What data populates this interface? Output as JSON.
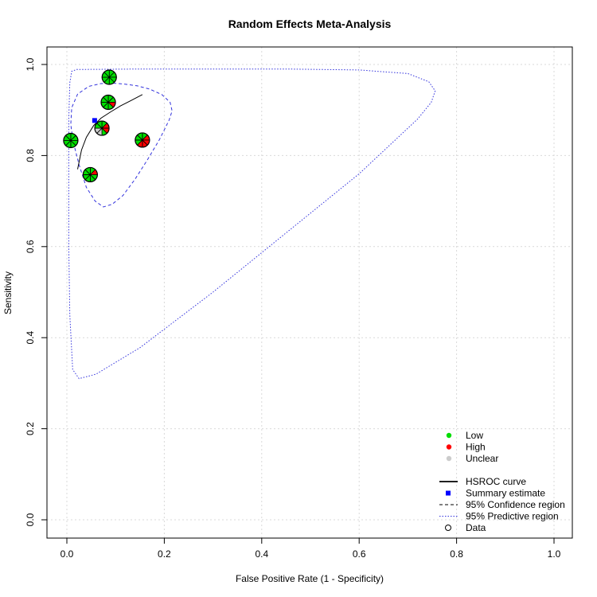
{
  "chart_data": {
    "type": "scatter",
    "title": "Random Effects Meta-Analysis",
    "xlabel": "False Positive Rate (1 - Specificity)",
    "ylabel": "Sensitivity",
    "xlim": [
      0,
      1
    ],
    "ylim": [
      0,
      1
    ],
    "x_ticks": [
      "0.0",
      "0.2",
      "0.4",
      "0.6",
      "0.8",
      "1.0"
    ],
    "y_ticks": [
      "0.0",
      "0.2",
      "0.4",
      "0.6",
      "0.8",
      "1.0"
    ],
    "grid": true,
    "legend_position": "bottom-right",
    "colors": {
      "low": "#00dd00",
      "high": "#ff0000",
      "unclear": "#cccccc",
      "summary": "#0000ff",
      "regions": "#3333dd"
    },
    "legend": {
      "risk": [
        {
          "label": "Low",
          "color": "#00dd00"
        },
        {
          "label": "High",
          "color": "#ff0000"
        },
        {
          "label": "Unclear",
          "color": "#cccccc"
        }
      ],
      "elements": [
        {
          "label": "HSROC curve",
          "symbol": "line"
        },
        {
          "label": "Summary estimate",
          "symbol": "square"
        },
        {
          "label": "95% Confidence region",
          "symbol": "dashed"
        },
        {
          "label": "95% Predictive region",
          "symbol": "dotted"
        },
        {
          "label": "Data",
          "symbol": "circle"
        }
      ]
    },
    "studies": [
      {
        "x": 0.087,
        "y": 0.972,
        "slices": [
          "low",
          "low",
          "low",
          "low",
          "low",
          "low",
          "low",
          "low"
        ]
      },
      {
        "x": 0.085,
        "y": 0.917,
        "slices": [
          "low",
          "low",
          "high",
          "low",
          "low",
          "low",
          "low",
          "low"
        ]
      },
      {
        "x": 0.072,
        "y": 0.86,
        "slices": [
          "low",
          "high",
          "high",
          "low",
          "unclear",
          "unclear",
          "low",
          "low"
        ]
      },
      {
        "x": 0.155,
        "y": 0.834,
        "slices": [
          "low",
          "high",
          "high",
          "high",
          "high",
          "low",
          "low",
          "low"
        ]
      },
      {
        "x": 0.008,
        "y": 0.833,
        "slices": [
          "low",
          "low",
          "low",
          "low",
          "low",
          "low",
          "low",
          "low"
        ]
      },
      {
        "x": 0.048,
        "y": 0.758,
        "slices": [
          "low",
          "high",
          "low",
          "low",
          "low",
          "low",
          "low",
          "low"
        ]
      }
    ],
    "summary_estimate": {
      "x": 0.057,
      "y": 0.877
    },
    "hsroc_curve": [
      [
        0.022,
        0.77
      ],
      [
        0.03,
        0.812
      ],
      [
        0.04,
        0.84
      ],
      [
        0.055,
        0.866
      ],
      [
        0.07,
        0.882
      ],
      [
        0.09,
        0.896
      ],
      [
        0.11,
        0.909
      ],
      [
        0.13,
        0.92
      ],
      [
        0.155,
        0.934
      ]
    ],
    "confidence_region": [
      [
        0.095,
        0.959
      ],
      [
        0.118,
        0.957
      ],
      [
        0.145,
        0.953
      ],
      [
        0.17,
        0.946
      ],
      [
        0.195,
        0.934
      ],
      [
        0.212,
        0.917
      ],
      [
        0.216,
        0.898
      ],
      [
        0.21,
        0.878
      ],
      [
        0.19,
        0.835
      ],
      [
        0.165,
        0.79
      ],
      [
        0.14,
        0.748
      ],
      [
        0.115,
        0.712
      ],
      [
        0.093,
        0.693
      ],
      [
        0.075,
        0.687
      ],
      [
        0.058,
        0.7
      ],
      [
        0.04,
        0.73
      ],
      [
        0.025,
        0.78
      ],
      [
        0.013,
        0.83
      ],
      [
        0.008,
        0.868
      ],
      [
        0.01,
        0.905
      ],
      [
        0.022,
        0.935
      ],
      [
        0.045,
        0.952
      ],
      [
        0.07,
        0.958
      ],
      [
        0.095,
        0.959
      ]
    ],
    "predictive_region": [
      [
        0.02,
        0.989
      ],
      [
        0.15,
        0.99
      ],
      [
        0.3,
        0.99
      ],
      [
        0.45,
        0.99
      ],
      [
        0.6,
        0.988
      ],
      [
        0.7,
        0.98
      ],
      [
        0.743,
        0.962
      ],
      [
        0.756,
        0.942
      ],
      [
        0.748,
        0.917
      ],
      [
        0.72,
        0.88
      ],
      [
        0.6,
        0.76
      ],
      [
        0.45,
        0.63
      ],
      [
        0.3,
        0.5
      ],
      [
        0.15,
        0.378
      ],
      [
        0.06,
        0.32
      ],
      [
        0.025,
        0.31
      ],
      [
        0.012,
        0.33
      ],
      [
        0.006,
        0.45
      ],
      [
        0.004,
        0.6
      ],
      [
        0.004,
        0.75
      ],
      [
        0.004,
        0.88
      ],
      [
        0.006,
        0.96
      ],
      [
        0.01,
        0.985
      ],
      [
        0.02,
        0.989
      ]
    ]
  }
}
